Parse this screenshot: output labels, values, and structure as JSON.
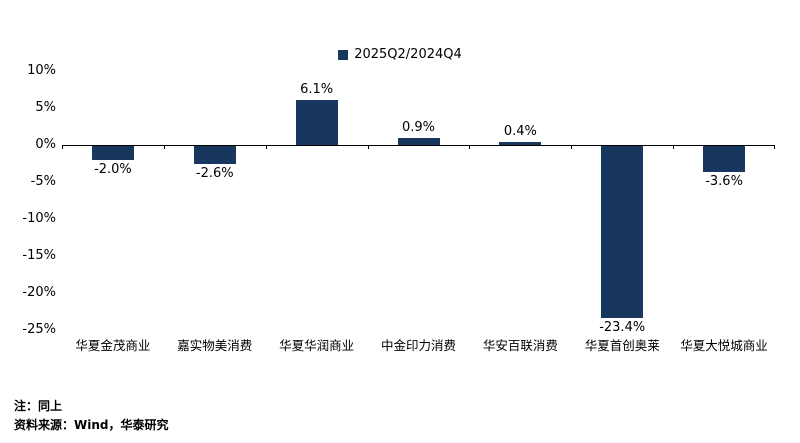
{
  "chart_data": {
    "type": "bar",
    "title": "",
    "legend": "2025Q2/2024Q4",
    "categories": [
      "华夏金茂商业",
      "嘉实物美消费",
      "华夏华润商业",
      "中金印力消费",
      "华安百联消费",
      "华夏首创奥莱",
      "华夏大悦城商业"
    ],
    "values": [
      -2.0,
      -2.6,
      6.1,
      0.9,
      0.4,
      -23.4,
      -3.6
    ],
    "value_labels": [
      "-2.0%",
      "-2.6%",
      "6.1%",
      "0.9%",
      "0.4%",
      "-23.4%",
      "-3.6%"
    ],
    "ylim": [
      -25,
      10
    ],
    "y_ticks": [
      {
        "value": 10,
        "label": "10%"
      },
      {
        "value": 5,
        "label": "5%"
      },
      {
        "value": 0,
        "label": "0%"
      },
      {
        "value": -5,
        "label": "-5%"
      },
      {
        "value": -10,
        "label": "-10%"
      },
      {
        "value": -15,
        "label": "-15%"
      },
      {
        "value": -20,
        "label": "-20%"
      },
      {
        "value": -25,
        "label": "-25%"
      }
    ],
    "bar_color": "#17375E",
    "grid": false,
    "legend_position": "top-center"
  },
  "footer": {
    "note": "注：同上",
    "source": "资料来源：Wind，华泰研究"
  }
}
